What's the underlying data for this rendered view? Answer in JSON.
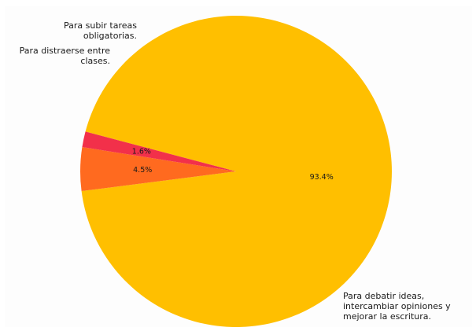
{
  "chart_data": {
    "type": "pie",
    "title": "",
    "slices": [
      {
        "label": [
          "Para debatir ideas,",
          "intercambiar opiniones y",
          "mejorar la escritura."
        ],
        "value": 93.4,
        "pct_text": "93.4%",
        "color": "#FFBF00"
      },
      {
        "label": [
          "Para subir tareas",
          "obligatorias."
        ],
        "value": 4.5,
        "pct_text": "4.5%",
        "color": "#FF6A1F"
      },
      {
        "label": [
          "Para distraerse entre",
          "clases."
        ],
        "value": 1.6,
        "pct_text": "1.6%",
        "color": "#F2304A"
      }
    ],
    "start_angle_deg": 165.2,
    "direction": "clockwise",
    "legend": "none"
  }
}
